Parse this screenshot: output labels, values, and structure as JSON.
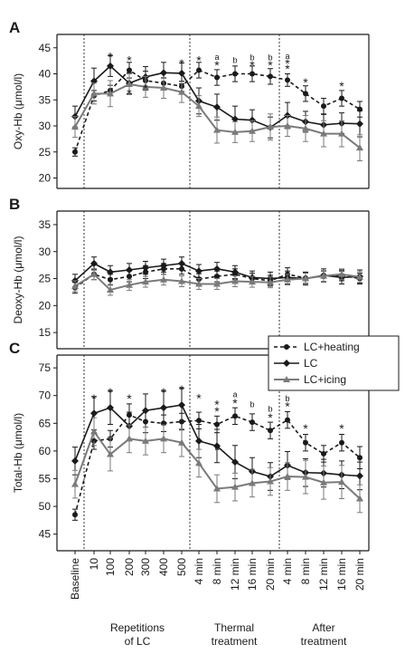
{
  "chart_data": [
    {
      "type": "line",
      "panel_label": "A",
      "ylabel": "Oxy-Hb (μmol/l)",
      "ylim": [
        18,
        46
      ],
      "yticks": [
        20,
        25,
        30,
        35,
        40,
        45
      ],
      "grid": false,
      "series": [
        {
          "name": "LC+heating",
          "color": "#1a1a1a",
          "values": [
            25.0,
            35.8,
            36.8,
            40.7,
            38.7,
            38.2,
            37.6,
            40.7,
            39.3,
            40.0,
            40.0,
            39.5,
            38.8,
            36.2,
            33.8,
            35.3,
            33.2
          ],
          "errors": [
            0.8,
            1.0,
            1.0,
            1.5,
            1.8,
            1.0,
            1.0,
            1.5,
            1.5,
            1.5,
            1.5,
            1.5,
            1.2,
            1.5,
            1.5,
            1.5,
            1.5
          ]
        },
        {
          "name": "LC",
          "color": "#1a1a1a",
          "values": [
            31.8,
            38.6,
            41.5,
            38.2,
            39.4,
            40.2,
            40.1,
            34.8,
            33.6,
            31.3,
            31.1,
            29.7,
            32.0,
            30.8,
            30.2,
            30.5,
            30.4
          ],
          "errors": [
            2.0,
            2.5,
            2.0,
            2.0,
            2.0,
            2.0,
            2.0,
            2.5,
            2.5,
            2.5,
            2.0,
            2.0,
            2.5,
            2.0,
            2.0,
            2.0,
            2.5
          ]
        },
        {
          "name": "LC+icing",
          "color": "#7a7a7a",
          "values": [
            29.8,
            36.2,
            36.2,
            38.0,
            37.5,
            37.3,
            36.5,
            33.8,
            29.2,
            28.8,
            29.0,
            29.8,
            30.0,
            29.5,
            28.5,
            28.5,
            25.8
          ],
          "errors": [
            2.0,
            2.0,
            2.5,
            2.0,
            2.0,
            2.0,
            2.0,
            2.0,
            2.5,
            2.0,
            2.0,
            2.5,
            2.0,
            2.5,
            2.5,
            2.5,
            2.5
          ]
        }
      ],
      "annotations": [
        {
          "index": 2,
          "label": "*",
          "value": 43.5
        },
        {
          "index": 3,
          "label": "*",
          "value": 42.8
        },
        {
          "index": 3,
          "label": "*",
          "value": 36.4
        },
        {
          "index": 4,
          "label": "*",
          "value": 37.4
        },
        {
          "index": 6,
          "label": "*",
          "value": 42.2
        },
        {
          "index": 7,
          "label": "*",
          "value": 42.8
        },
        {
          "index": 8,
          "label": "*",
          "value": 41.8
        },
        {
          "index": 8,
          "label": "a",
          "value": 43.2
        },
        {
          "index": 9,
          "label": "b",
          "value": 42.6
        },
        {
          "index": 10,
          "label": "*",
          "value": 41.8
        },
        {
          "index": 10,
          "label": "b",
          "value": 43.1
        },
        {
          "index": 11,
          "label": "*",
          "value": 41.8
        },
        {
          "index": 11,
          "label": "b",
          "value": 43.1
        },
        {
          "index": 12,
          "label": "*",
          "value": 41.1
        },
        {
          "index": 12,
          "label": "*",
          "value": 42.2
        },
        {
          "index": 12,
          "label": "a",
          "value": 43.4
        },
        {
          "index": 13,
          "label": "*",
          "value": 38.5
        },
        {
          "index": 15,
          "label": "*",
          "value": 37.8
        }
      ]
    },
    {
      "type": "line",
      "panel_label": "B",
      "ylabel": "Deoxy-Hb (μmol/l)",
      "ylim": [
        12,
        36
      ],
      "yticks": [
        15,
        20,
        25,
        30,
        35
      ],
      "grid": false,
      "series": [
        {
          "name": "LC+heating",
          "color": "#1a1a1a",
          "values": [
            23.3,
            25.8,
            24.8,
            25.4,
            26.2,
            26.8,
            26.8,
            24.9,
            25.4,
            25.8,
            25.0,
            24.6,
            25.8,
            25.1,
            25.4,
            25.6,
            25.0
          ],
          "errors": [
            1.0,
            1.0,
            1.0,
            1.0,
            1.2,
            1.0,
            1.0,
            1.0,
            1.0,
            1.0,
            1.0,
            1.0,
            1.2,
            1.0,
            1.0,
            1.0,
            1.0
          ]
        },
        {
          "name": "LC",
          "color": "#1a1a1a",
          "values": [
            24.6,
            27.8,
            26.2,
            26.6,
            27.0,
            27.4,
            27.8,
            26.4,
            26.8,
            26.2,
            25.2,
            25.0,
            25.2,
            25.0,
            25.6,
            25.2,
            25.4
          ],
          "errors": [
            1.2,
            1.2,
            1.2,
            1.2,
            1.2,
            1.2,
            1.2,
            1.2,
            1.2,
            1.2,
            1.2,
            1.2,
            1.2,
            1.2,
            1.2,
            1.2,
            1.2
          ]
        },
        {
          "name": "LC+icing",
          "color": "#7a7a7a",
          "values": [
            23.6,
            25.8,
            22.9,
            23.8,
            24.4,
            24.8,
            24.5,
            24.0,
            24.0,
            24.5,
            24.4,
            24.3,
            24.8,
            25.0,
            25.5,
            25.8,
            25.3
          ],
          "errors": [
            1.0,
            1.0,
            1.0,
            1.0,
            1.0,
            1.0,
            1.0,
            1.0,
            1.0,
            1.0,
            1.0,
            1.0,
            1.0,
            1.0,
            1.0,
            1.0,
            1.0
          ]
        }
      ],
      "annotations": []
    },
    {
      "type": "line",
      "panel_label": "C",
      "ylabel": "Total-Hb (μmol/l)",
      "ylim": [
        42,
        76
      ],
      "yticks": [
        45,
        50,
        55,
        60,
        65,
        70,
        75
      ],
      "grid": false,
      "series": [
        {
          "name": "LC+heating",
          "color": "#1a1a1a",
          "values": [
            48.5,
            61.8,
            62.2,
            66.5,
            65.3,
            65.0,
            65.3,
            65.5,
            64.8,
            66.3,
            65.2,
            63.7,
            65.6,
            61.5,
            59.5,
            61.5,
            58.8
          ],
          "errors": [
            1.0,
            1.5,
            1.5,
            2.0,
            2.0,
            1.5,
            1.5,
            1.5,
            1.5,
            1.5,
            1.5,
            1.5,
            1.5,
            1.5,
            1.5,
            1.5,
            2.0
          ]
        },
        {
          "name": "LC",
          "color": "#1a1a1a",
          "values": [
            58.2,
            66.8,
            67.8,
            64.5,
            67.3,
            67.8,
            68.3,
            61.8,
            60.9,
            58.0,
            56.3,
            55.4,
            57.4,
            56.1,
            56.0,
            55.7,
            55.5
          ],
          "errors": [
            2.5,
            3.0,
            3.0,
            2.5,
            3.0,
            3.0,
            3.0,
            3.0,
            3.0,
            3.0,
            2.5,
            2.5,
            2.5,
            2.5,
            2.5,
            2.5,
            2.5
          ]
        },
        {
          "name": "LC+icing",
          "color": "#7a7a7a",
          "values": [
            54.0,
            63.5,
            59.4,
            62.2,
            61.8,
            62.2,
            61.5,
            57.8,
            53.2,
            53.5,
            54.2,
            54.5,
            55.4,
            55.3,
            54.3,
            54.4,
            51.4
          ],
          "errors": [
            2.5,
            2.5,
            3.0,
            2.5,
            2.5,
            2.5,
            2.5,
            2.5,
            2.5,
            2.5,
            2.5,
            2.5,
            2.5,
            3.0,
            3.0,
            3.0,
            2.5
          ]
        }
      ],
      "annotations": [
        {
          "index": 1,
          "label": "*",
          "value": 69.6
        },
        {
          "index": 1,
          "label": "*",
          "value": 61.9
        },
        {
          "index": 2,
          "label": "*",
          "value": 70.8
        },
        {
          "index": 3,
          "label": "*",
          "value": 69.6
        },
        {
          "index": 5,
          "label": "*",
          "value": 70.8
        },
        {
          "index": 6,
          "label": "*",
          "value": 71.3
        },
        {
          "index": 7,
          "label": "*",
          "value": 69.7
        },
        {
          "index": 8,
          "label": "*",
          "value": 67.3
        },
        {
          "index": 8,
          "label": "*",
          "value": 68.6
        },
        {
          "index": 8,
          "label": "a",
          "value": 60.6
        },
        {
          "index": 9,
          "label": "*",
          "value": 68.8
        },
        {
          "index": 9,
          "label": "a",
          "value": 70.2
        },
        {
          "index": 10,
          "label": "b",
          "value": 68.4
        },
        {
          "index": 11,
          "label": "*",
          "value": 66.2
        },
        {
          "index": 11,
          "label": "b",
          "value": 67.6
        },
        {
          "index": 12,
          "label": "*",
          "value": 68.2
        },
        {
          "index": 12,
          "label": "b",
          "value": 69.5
        },
        {
          "index": 13,
          "label": "*",
          "value": 64.2
        },
        {
          "index": 15,
          "label": "*",
          "value": 64.2
        }
      ]
    }
  ],
  "x_categories": [
    "Baseline",
    "10",
    "100",
    "200",
    "300",
    "400",
    "500",
    "4 min",
    "8 min",
    "12 min",
    "16 min",
    "20 min",
    "4 min",
    "8 min",
    "12 min",
    "16 min",
    "20 min"
  ],
  "x_groups": [
    {
      "label_line1": "Repetitions",
      "label_line2": "of LC"
    },
    {
      "label_line1": "Thermal",
      "label_line2": "treatment"
    },
    {
      "label_line1": "After",
      "label_line2": "treatment"
    }
  ],
  "legend": {
    "placement": "right of panel C, upper",
    "entries": [
      "LC+heating",
      "LC",
      "LC+icing"
    ]
  }
}
